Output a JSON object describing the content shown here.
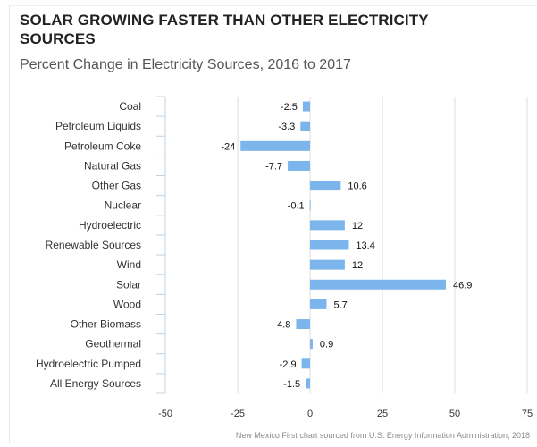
{
  "title": "SOLAR GROWING FASTER THAN OTHER ELECTRICITY SOURCES",
  "subtitle": "Percent Change in Electricity Sources, 2016 to 2017",
  "source": "New Mexico First chart sourced from U.S. Energy Information Administration, 2018",
  "colors": {
    "bar": "#7cb5ec",
    "grid": "#dcdcdc",
    "axis": "#c0d0e0"
  },
  "chart_data": {
    "type": "bar",
    "orientation": "horizontal",
    "title": "SOLAR GROWING FASTER THAN OTHER ELECTRICITY SOURCES",
    "subtitle": "Percent Change in Electricity Sources, 2016 to 2017",
    "categories": [
      "Coal",
      "Petroleum Liquids",
      "Petroleum Coke",
      "Natural Gas",
      "Other Gas",
      "Nuclear",
      "Hydroelectric",
      "Renewable Sources",
      "Wind",
      "Solar",
      "Wood",
      "Other Biomass",
      "Geothermal",
      "Hydroelectric Pumped",
      "All Energy Sources"
    ],
    "values": [
      -2.5,
      -3.3,
      -24,
      -7.7,
      10.6,
      -0.1,
      12,
      13.4,
      12,
      46.9,
      5.7,
      -4.8,
      0.9,
      -2.9,
      -1.5
    ],
    "xlim": [
      -50,
      75
    ],
    "xticks": [
      "-50",
      "-25",
      "0",
      "25",
      "50",
      "75"
    ],
    "grid": true,
    "legend": "none"
  }
}
